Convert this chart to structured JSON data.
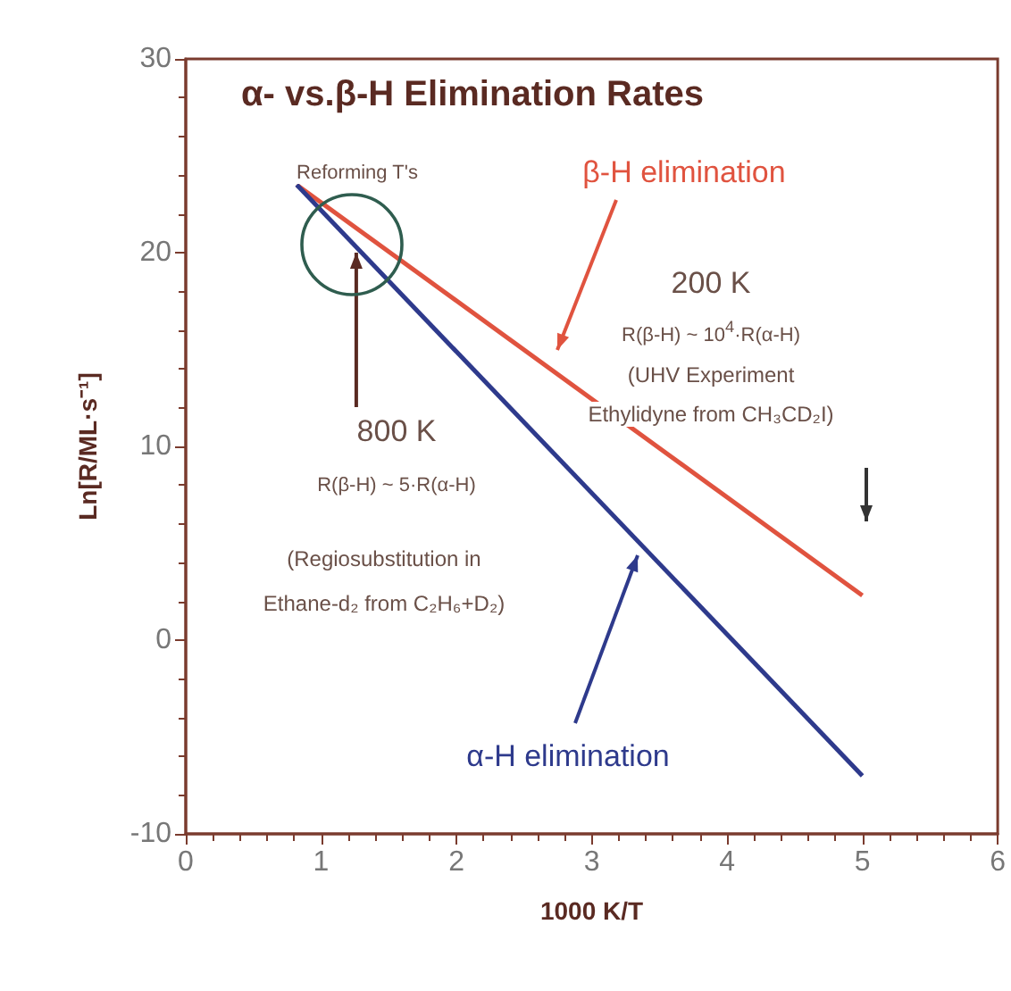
{
  "chart_data": {
    "type": "line",
    "title": "α- vs.β-H Elimination Rates",
    "xlabel": "1000 K/T",
    "ylabel": "Ln[R/ML·s⁻¹]",
    "x": [
      0.82,
      5
    ],
    "series": [
      {
        "name": "β-H elimination",
        "color": "#e0533f",
        "values": [
          23.5,
          2.3
        ]
      },
      {
        "name": "α-H elimination",
        "color": "#2e3a8c",
        "values": [
          23.5,
          -7
        ]
      }
    ],
    "xlim": [
      0,
      6
    ],
    "xticks": [
      0,
      1,
      2,
      3,
      4,
      5,
      6
    ],
    "ylim": [
      -10,
      30
    ],
    "yticks": [
      -10,
      0,
      10,
      20,
      30
    ],
    "grid": false,
    "legend": false,
    "marker": "none",
    "line_style": "solid",
    "annotations": [
      "Reforming T's",
      "200 K",
      "R(β-H) ~ 10$^{4}$·R(α-H)",
      "(UHV Experiment",
      "Ethylidyne from CH₃CD₂I)",
      {
        "text": "800 K",
        "x": 1.26,
        "y": 20
      },
      "R(β-H) ~ 5·R(α-H)",
      "(Regiosubstitution in",
      "Ethane-d₂ from C₂H₆+D₂)"
    ]
  }
}
